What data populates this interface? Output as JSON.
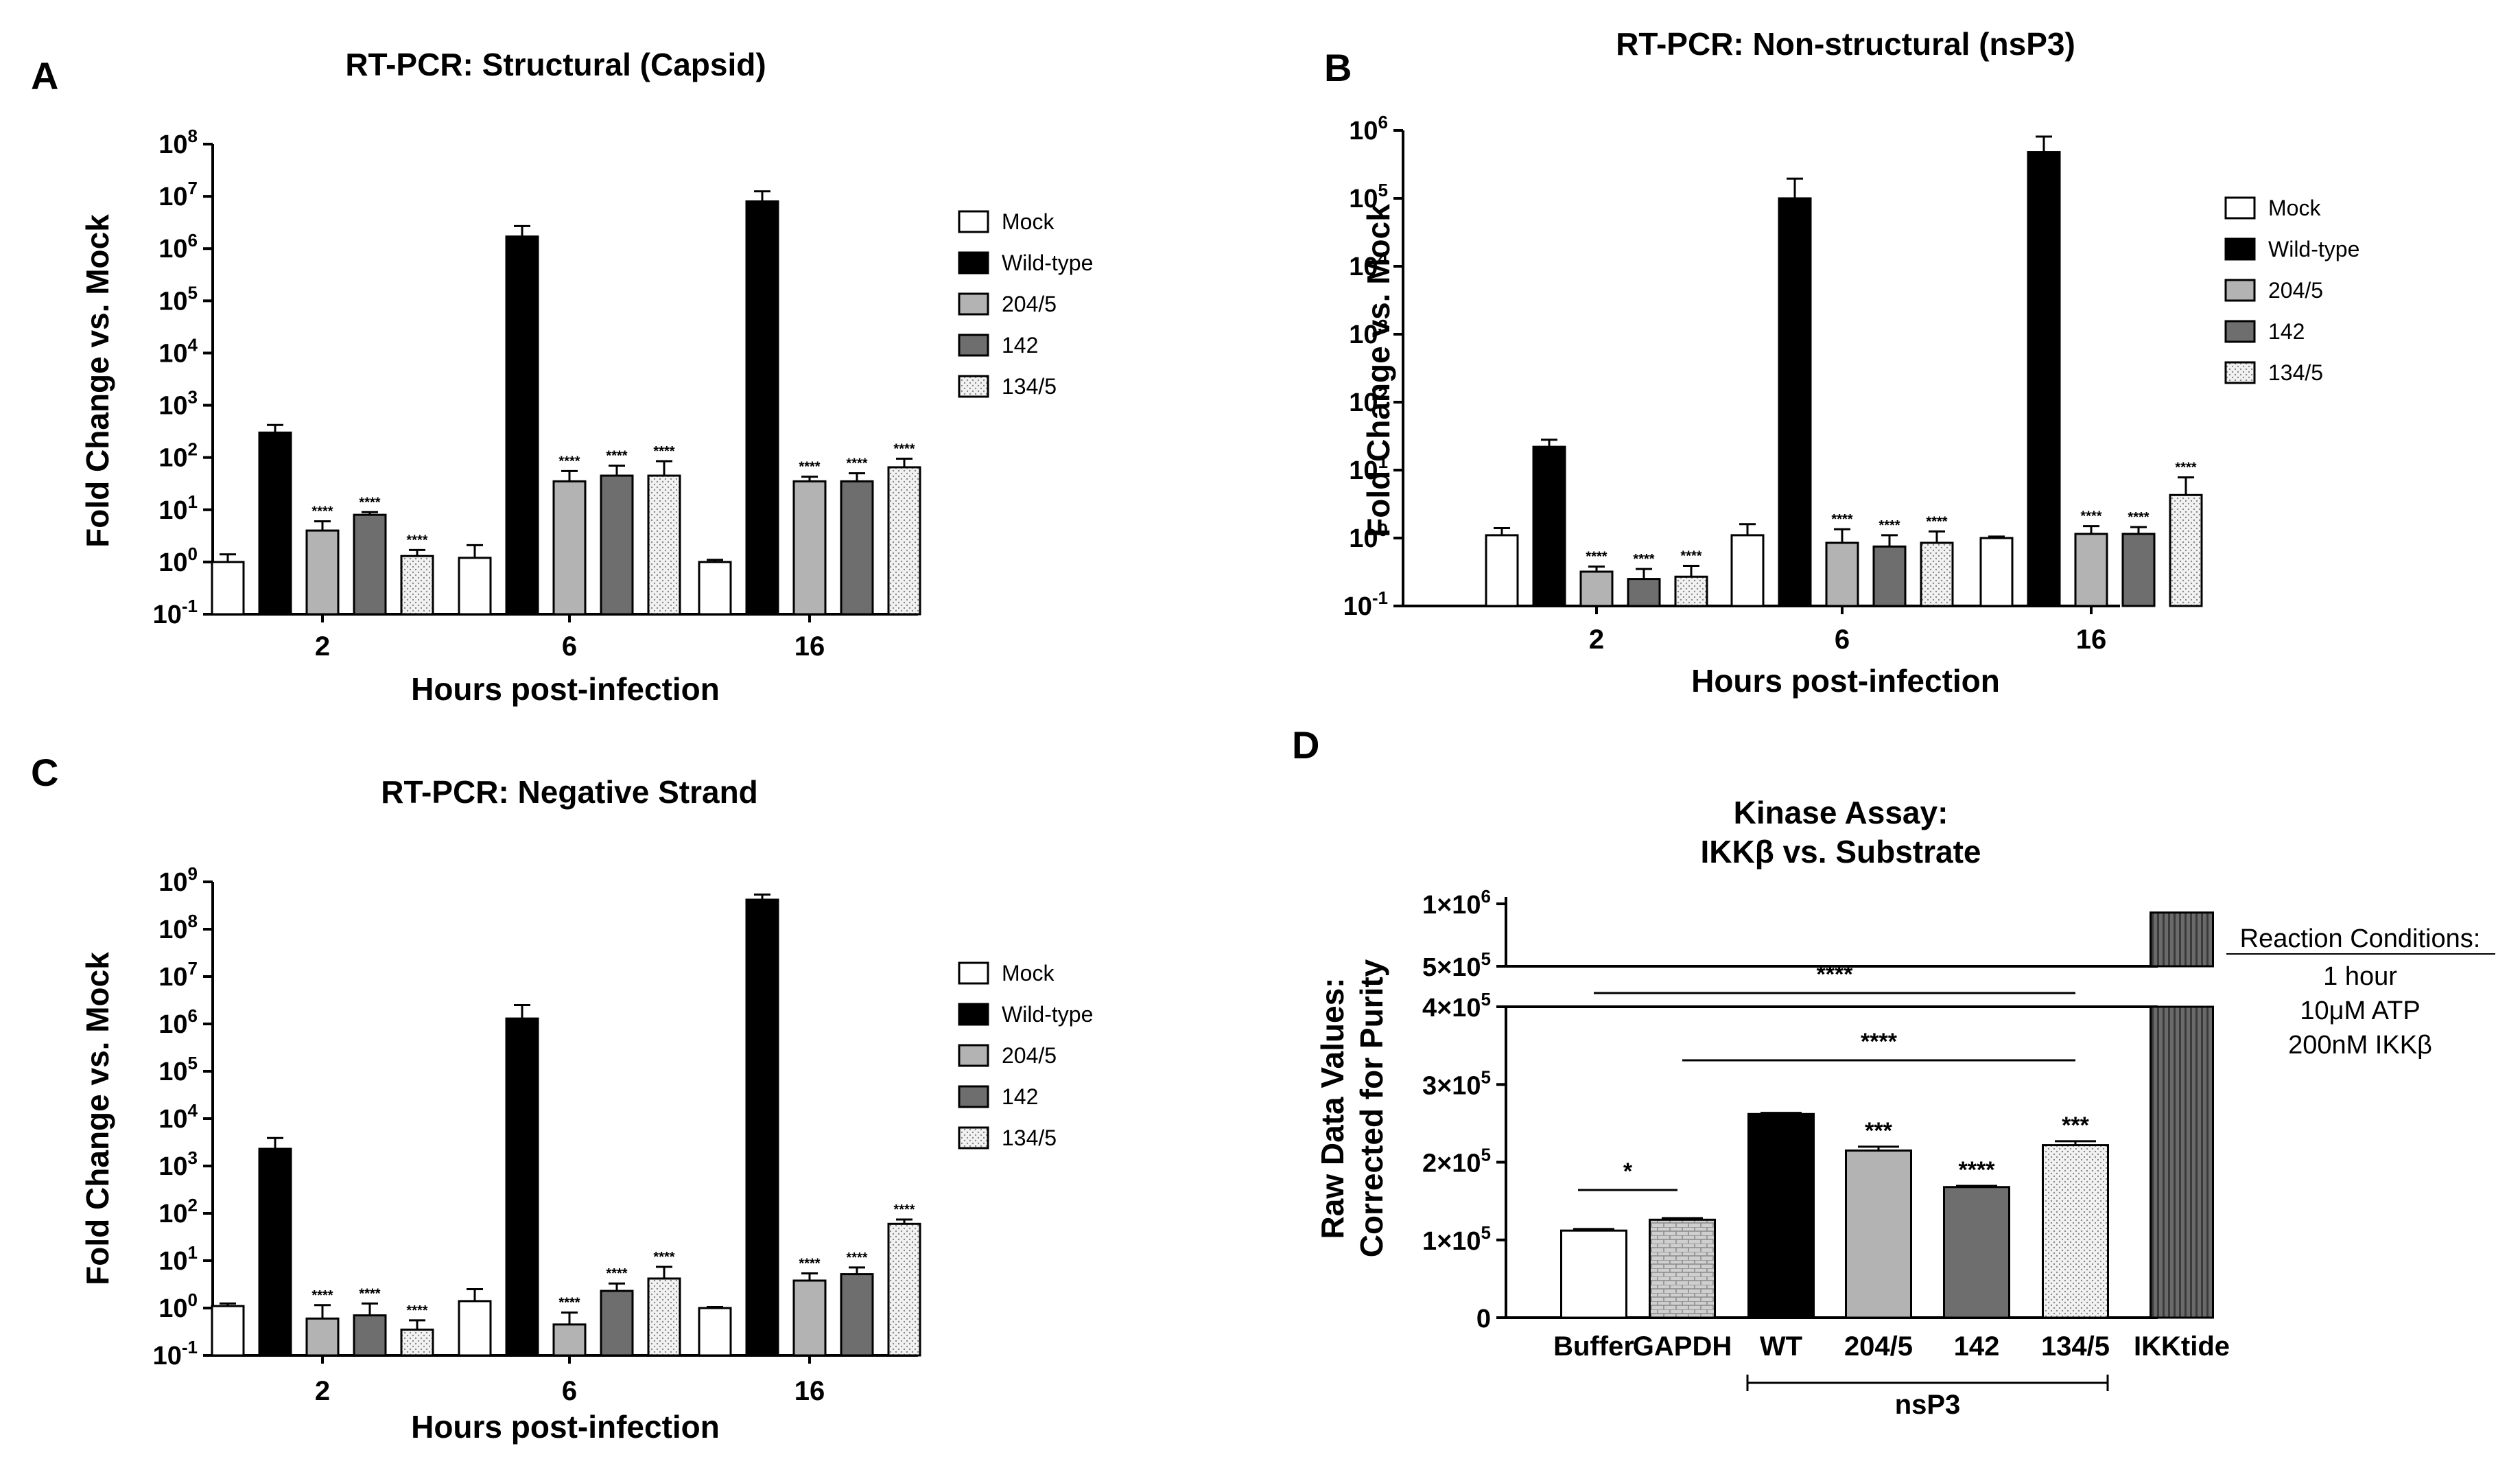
{
  "colors": {
    "Mock": "#ffffff",
    "Wild-type": "#000000",
    "204/5": "#b3b3b3",
    "142": "#6e6e6e",
    "134/5": "#e6e6e6"
  },
  "chart_data": [
    {
      "panel": "A",
      "type": "bar",
      "scale": "log",
      "title": "RT-PCR: Structural (Capsid)",
      "xlabel": "Hours post-infection",
      "ylabel": "Fold Change vs. Mock",
      "ylim_exp": [
        -1,
        8
      ],
      "yticks": [
        {
          "b": "10",
          "e": "8"
        },
        {
          "b": "10",
          "e": "7"
        },
        {
          "b": "10",
          "e": "6"
        },
        {
          "b": "10",
          "e": "5"
        },
        {
          "b": "10",
          "e": "4"
        },
        {
          "b": "10",
          "e": "3"
        },
        {
          "b": "10",
          "e": "2"
        },
        {
          "b": "10",
          "e": "1"
        },
        {
          "b": "10",
          "e": "0"
        },
        {
          "b": "10",
          "e": "-1"
        }
      ],
      "categories": [
        "2",
        "6",
        "16"
      ],
      "legend": [
        "Mock",
        "Wild-type",
        "204/5",
        "142",
        "134/5"
      ],
      "series": [
        {
          "name": "Mock",
          "values": [
            1.0,
            1.2,
            1.0
          ],
          "errors": [
            0.4,
            0.9,
            0.1
          ]
        },
        {
          "name": "Wild-type",
          "values": [
            300,
            1700000,
            8000000
          ],
          "errors": [
            120,
            1000000,
            4500000
          ]
        },
        {
          "name": "204/5",
          "values": [
            4,
            35,
            35
          ],
          "errors": [
            2,
            20,
            8
          ]
        },
        {
          "name": "142",
          "values": [
            8,
            45,
            35
          ],
          "errors": [
            1,
            25,
            15
          ]
        },
        {
          "name": "134/5",
          "values": [
            1.3,
            45,
            65
          ],
          "errors": [
            0.4,
            40,
            30
          ]
        }
      ],
      "significance": [
        [
          "",
          "",
          "****",
          "****",
          "****"
        ],
        [
          "",
          "",
          "****",
          "****",
          "****"
        ],
        [
          "",
          "",
          "****",
          "****",
          "****"
        ]
      ]
    },
    {
      "panel": "B",
      "type": "bar",
      "scale": "log",
      "title": "RT-PCR: Non-structural (nsP3)",
      "xlabel": "Hours post-infection",
      "ylabel": "Fold Change vs. Mock",
      "ylim_exp": [
        -1,
        6
      ],
      "yticks": [
        {
          "b": "10",
          "e": "6"
        },
        {
          "b": "10",
          "e": "5"
        },
        {
          "b": "10",
          "e": "4"
        },
        {
          "b": "10",
          "e": "3"
        },
        {
          "b": "10",
          "e": "2"
        },
        {
          "b": "10",
          "e": "1"
        },
        {
          "b": "10",
          "e": "0"
        },
        {
          "b": "10",
          "e": "-1"
        }
      ],
      "categories": [
        "2",
        "6",
        "16"
      ],
      "legend": [
        "Mock",
        "Wild-type",
        "204/5",
        "142",
        "134/5"
      ],
      "series": [
        {
          "name": "Mock",
          "values": [
            1.1,
            1.1,
            1.0
          ],
          "errors": [
            0.3,
            0.5,
            0.05
          ]
        },
        {
          "name": "Wild-type",
          "values": [
            22,
            100000,
            480000
          ],
          "errors": [
            6,
            95000,
            330000
          ]
        },
        {
          "name": "204/5",
          "values": [
            0.32,
            0.85,
            1.15
          ],
          "errors": [
            0.06,
            0.5,
            0.35
          ]
        },
        {
          "name": "142",
          "values": [
            0.25,
            0.75,
            1.15
          ],
          "errors": [
            0.1,
            0.35,
            0.3
          ]
        },
        {
          "name": "134/5",
          "values": [
            0.27,
            0.85,
            4.3
          ],
          "errors": [
            0.12,
            0.4,
            3.5
          ]
        }
      ],
      "significance": [
        [
          "",
          "",
          "****",
          "****",
          "****"
        ],
        [
          "",
          "",
          "****",
          "****",
          "****"
        ],
        [
          "",
          "",
          "****",
          "****",
          "****"
        ]
      ]
    },
    {
      "panel": "C",
      "type": "bar",
      "scale": "log",
      "title": "RT-PCR: Negative Strand",
      "xlabel": "Hours post-infection",
      "ylabel": "Fold Change vs. Mock",
      "ylim_exp": [
        -1,
        9
      ],
      "yticks": [
        {
          "b": "10",
          "e": "9"
        },
        {
          "b": "10",
          "e": "8"
        },
        {
          "b": "10",
          "e": "7"
        },
        {
          "b": "10",
          "e": "6"
        },
        {
          "b": "10",
          "e": "5"
        },
        {
          "b": "10",
          "e": "4"
        },
        {
          "b": "10",
          "e": "3"
        },
        {
          "b": "10",
          "e": "2"
        },
        {
          "b": "10",
          "e": "1"
        },
        {
          "b": "10",
          "e": "0"
        },
        {
          "b": "10",
          "e": "-1"
        }
      ],
      "categories": [
        "2",
        "6",
        "16"
      ],
      "legend": [
        "Mock",
        "Wild-type",
        "204/5",
        "142",
        "134/5"
      ],
      "series": [
        {
          "name": "Mock",
          "values": [
            1.1,
            1.4,
            1.0
          ],
          "errors": [
            0.15,
            1.1,
            0.05
          ]
        },
        {
          "name": "Wild-type",
          "values": [
            2300,
            1300000,
            420000000
          ],
          "errors": [
            1600,
            1200000,
            120000000
          ]
        },
        {
          "name": "204/5",
          "values": [
            0.6,
            0.45,
            3.8
          ],
          "errors": [
            0.55,
            0.35,
            1.6
          ]
        },
        {
          "name": "142",
          "values": [
            0.7,
            2.3,
            5.2
          ],
          "errors": [
            0.55,
            1.0,
            2.0
          ]
        },
        {
          "name": "134/5",
          "values": [
            0.35,
            4.2,
            60
          ],
          "errors": [
            0.2,
            3.2,
            14
          ]
        }
      ],
      "significance": [
        [
          "",
          "",
          "****",
          "****",
          "****"
        ],
        [
          "",
          "",
          "****",
          "****",
          "****"
        ],
        [
          "",
          "",
          "****",
          "****",
          "****"
        ]
      ]
    },
    {
      "panel": "D",
      "type": "bar",
      "scale": "linear-broken",
      "title": "Kinase Assay:",
      "title_line2": "IKKβ vs. Substrate",
      "ylabel": "Raw Data Values:",
      "ylabel_line2": "Corrected for Purity",
      "lower_range": [
        0,
        400000
      ],
      "upper_range": [
        500000,
        1000000
      ],
      "yticks": [
        {
          "v": 0,
          "m": "0",
          "e": ""
        },
        {
          "v": 100000,
          "m": "1×10",
          "e": "5"
        },
        {
          "v": 200000,
          "m": "2×10",
          "e": "5"
        },
        {
          "v": 300000,
          "m": "3×10",
          "e": "5"
        },
        {
          "v": 400000,
          "m": "4×10",
          "e": "5"
        },
        {
          "v": 500000,
          "m": "5×10",
          "e": "5"
        },
        {
          "v": 1000000,
          "m": "1×10",
          "e": "6"
        }
      ],
      "categories": [
        "Buffer",
        "GAPDH",
        "WT",
        "204/5",
        "142",
        "134/5",
        "IKKtide"
      ],
      "values": [
        112000,
        126000,
        262000,
        215000,
        168000,
        222000,
        930000
      ],
      "errors": [
        2000,
        2000,
        1500,
        5000,
        1500,
        5000,
        0
      ],
      "fills": [
        "#ffffff",
        "brick",
        "#000000",
        "#b3b3b3",
        "#6e6e6e",
        "dots",
        "vstripes"
      ],
      "bar_labels": [
        "",
        "",
        "",
        "***",
        "****",
        "***",
        ""
      ],
      "brackets": [
        {
          "from": 0,
          "to": 1,
          "label": "*"
        },
        {
          "from": 0,
          "to": 5,
          "label": "****"
        },
        {
          "from": 1,
          "to": 5,
          "label": "****"
        }
      ],
      "group_label": "nsP3",
      "conditions": {
        "header": "Reaction Conditions:",
        "lines": [
          "1 hour",
          "10μM ATP",
          "200nM IKKβ"
        ]
      }
    }
  ]
}
